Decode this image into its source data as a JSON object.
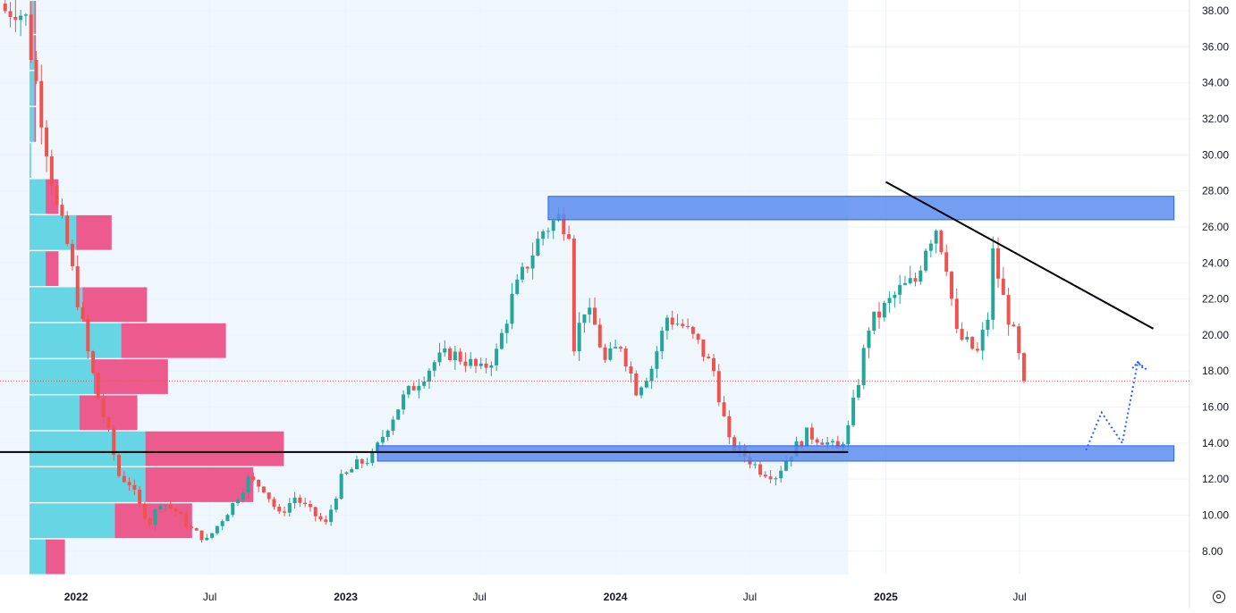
{
  "chart_data": {
    "type": "candlestick",
    "title": "",
    "xlabel": "",
    "ylabel": "",
    "ylim": [
      6.7,
      38.6
    ],
    "y_ticks": [
      "8.00",
      "10.00",
      "12.00",
      "14.00",
      "16.00",
      "18.00",
      "20.00",
      "22.00",
      "24.00",
      "26.00",
      "28.00",
      "30.00",
      "32.00",
      "34.00",
      "36.00",
      "38.00"
    ],
    "x_ticks": [
      {
        "label": "2022",
        "date": "2022-01-01",
        "year": true
      },
      {
        "label": "Jul",
        "date": "2022-07-01",
        "year": false
      },
      {
        "label": "2023",
        "date": "2023-01-01",
        "year": true
      },
      {
        "label": "Jul",
        "date": "2023-07-01",
        "year": false
      },
      {
        "label": "2024",
        "date": "2024-01-01",
        "year": true
      },
      {
        "label": "Jul",
        "date": "2024-07-01",
        "year": false
      },
      {
        "label": "2025",
        "date": "2025-01-01",
        "year": true
      },
      {
        "label": "Jul",
        "date": "2025-07-01",
        "year": false
      }
    ],
    "colors": {
      "up": "#26a69a",
      "down": "#ef5350",
      "zone": "#5b8def",
      "zone_border": "#2962ff",
      "trendline": "#000000",
      "projection": "#2962ff",
      "vp_up": "#4dd0e1",
      "vp_down": "#ec407a",
      "range_shade": "#e8f4fb",
      "grid": "#f0f3fa",
      "price_line": "#ef5350"
    },
    "current_price": 17.45,
    "candle_anchors": [
      [
        "2021-09-27",
        38.0
      ],
      [
        "2021-10-11",
        38.3
      ],
      [
        "2021-10-25",
        37.5
      ],
      [
        "2021-11-08",
        34.0
      ],
      [
        "2021-11-22",
        30.5
      ],
      [
        "2021-12-06",
        27.0
      ],
      [
        "2021-12-20",
        25.0
      ],
      [
        "2022-01-03",
        22.0
      ],
      [
        "2022-01-17",
        19.0
      ],
      [
        "2022-01-31",
        16.5
      ],
      [
        "2022-02-14",
        14.5
      ],
      [
        "2022-02-28",
        12.2
      ],
      [
        "2022-03-14",
        11.8
      ],
      [
        "2022-03-28",
        10.5
      ],
      [
        "2022-04-11",
        9.6
      ],
      [
        "2022-04-25",
        10.8
      ],
      [
        "2022-05-16",
        10.2
      ],
      [
        "2022-06-06",
        9.2
      ],
      [
        "2022-06-27",
        8.6
      ],
      [
        "2022-07-11",
        9.4
      ],
      [
        "2022-08-01",
        10.6
      ],
      [
        "2022-08-22",
        12.0
      ],
      [
        "2022-09-12",
        11.5
      ],
      [
        "2022-10-03",
        10.0
      ],
      [
        "2022-10-24",
        11.0
      ],
      [
        "2022-11-14",
        10.2
      ],
      [
        "2022-12-05",
        9.5
      ],
      [
        "2022-12-26",
        12.0
      ],
      [
        "2023-01-16",
        12.8
      ],
      [
        "2023-02-06",
        13.2
      ],
      [
        "2023-02-27",
        15.0
      ],
      [
        "2023-03-20",
        16.5
      ],
      [
        "2023-04-10",
        17.5
      ],
      [
        "2023-05-01",
        18.5
      ],
      [
        "2023-05-22",
        19.0
      ],
      [
        "2023-06-12",
        18.6
      ],
      [
        "2023-07-03",
        18.0
      ],
      [
        "2023-07-24",
        19.0
      ],
      [
        "2023-08-14",
        22.0
      ],
      [
        "2023-09-04",
        24.0
      ],
      [
        "2023-09-25",
        25.8
      ],
      [
        "2023-10-16",
        26.5
      ],
      [
        "2023-10-30",
        26.0
      ],
      [
        "2023-11-06",
        19.5
      ],
      [
        "2023-11-20",
        21.5
      ],
      [
        "2023-12-04",
        20.5
      ],
      [
        "2023-12-18",
        18.5
      ],
      [
        "2024-01-08",
        19.5
      ],
      [
        "2024-01-29",
        17.0
      ],
      [
        "2024-02-19",
        18.2
      ],
      [
        "2024-03-11",
        21.0
      ],
      [
        "2024-04-01",
        20.5
      ],
      [
        "2024-04-22",
        19.5
      ],
      [
        "2024-05-13",
        18.0
      ],
      [
        "2024-06-03",
        14.0
      ],
      [
        "2024-06-24",
        13.3
      ],
      [
        "2024-07-15",
        12.5
      ],
      [
        "2024-08-05",
        12.2
      ],
      [
        "2024-08-26",
        13.5
      ],
      [
        "2024-09-16",
        14.5
      ],
      [
        "2024-10-07",
        14.2
      ],
      [
        "2024-10-28",
        13.6
      ],
      [
        "2024-11-11",
        14.8
      ],
      [
        "2024-11-25",
        17.5
      ],
      [
        "2024-12-09",
        20.5
      ],
      [
        "2024-12-30",
        21.5
      ],
      [
        "2025-01-20",
        22.5
      ],
      [
        "2025-02-10",
        23.0
      ],
      [
        "2025-02-24",
        25.0
      ],
      [
        "2025-03-10",
        26.0
      ],
      [
        "2025-03-24",
        24.0
      ],
      [
        "2025-04-07",
        20.0
      ],
      [
        "2025-04-21",
        19.5
      ],
      [
        "2025-05-05",
        19.0
      ],
      [
        "2025-05-19",
        21.0
      ],
      [
        "2025-05-26",
        24.5
      ],
      [
        "2025-06-09",
        22.0
      ],
      [
        "2025-06-23",
        20.0
      ],
      [
        "2025-07-07",
        17.45
      ]
    ],
    "resistance_zone": {
      "from": "2023-10-02",
      "to": "2026-01-26",
      "low": 26.4,
      "high": 27.7
    },
    "support_zone": {
      "from": "2023-02-13",
      "to": "2026-01-26",
      "low": 13.0,
      "high": 13.85
    },
    "horizontal_line": {
      "from": "2021-09-20",
      "to": "2024-11-11",
      "value": 13.5
    },
    "trendline": {
      "from": [
        "2025-01-01",
        28.5
      ],
      "to": [
        "2025-12-29",
        20.35
      ]
    },
    "projection_path": [
      [
        "2025-09-29",
        13.6
      ],
      [
        "2025-10-20",
        15.7
      ],
      [
        "2025-11-17",
        14.0
      ],
      [
        "2025-12-08",
        18.5
      ],
      [
        "2025-12-22",
        18.0
      ]
    ],
    "volume_profile": [
      {
        "low": 6.7,
        "high": 8.7,
        "up": 1.0,
        "down": 1.2
      },
      {
        "low": 8.7,
        "high": 10.7,
        "up": 5.3,
        "down": 4.8
      },
      {
        "low": 10.7,
        "high": 12.7,
        "up": 7.2,
        "down": 6.7
      },
      {
        "low": 12.7,
        "high": 14.7,
        "up": 7.2,
        "down": 8.6
      },
      {
        "low": 14.7,
        "high": 16.7,
        "up": 3.1,
        "down": 3.6
      },
      {
        "low": 16.7,
        "high": 18.7,
        "up": 4.0,
        "down": 4.6
      },
      {
        "low": 18.7,
        "high": 20.7,
        "up": 5.7,
        "down": 6.5
      },
      {
        "low": 20.7,
        "high": 22.7,
        "up": 3.3,
        "down": 4.0
      },
      {
        "low": 22.7,
        "high": 24.7,
        "up": 1.0,
        "down": 0.8
      },
      {
        "low": 24.7,
        "high": 26.7,
        "up": 2.9,
        "down": 2.2
      },
      {
        "low": 26.7,
        "high": 28.7,
        "up": 1.0,
        "down": 0.8
      },
      {
        "low": 28.7,
        "high": 30.7,
        "up": 0.1,
        "down": 0.0
      },
      {
        "low": 30.7,
        "high": 32.7,
        "up": 0.3,
        "down": 0.1
      },
      {
        "low": 32.7,
        "high": 34.7,
        "up": 0.3,
        "down": 0.1
      },
      {
        "low": 34.7,
        "high": 36.7,
        "up": 0.3,
        "down": 0.1
      },
      {
        "low": 36.7,
        "high": 38.6,
        "up": 0.3,
        "down": 0.1
      }
    ]
  }
}
